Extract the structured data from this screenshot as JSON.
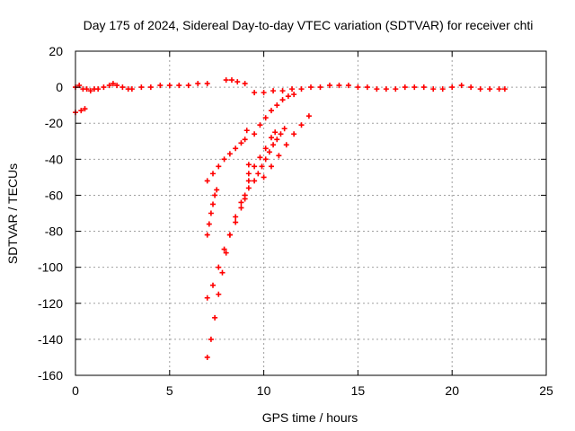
{
  "chart_data": {
    "type": "scatter",
    "title": "Day 175 of 2024, Sidereal Day-to-day VTEC variation (SDTVAR) for receiver chti",
    "xlabel": "GPS time / hours",
    "ylabel": "SDTVAR / TECUs",
    "xlim": [
      0,
      25
    ],
    "ylim": [
      -160,
      20
    ],
    "xticks": [
      0,
      5,
      10,
      15,
      20,
      25
    ],
    "yticks": [
      -160,
      -140,
      -120,
      -100,
      -80,
      -60,
      -40,
      -20,
      0,
      20
    ],
    "grid": true,
    "marker": "plus",
    "color": "#ff0000",
    "series": [
      {
        "points_xy": [
          [
            0.0,
            -14
          ],
          [
            0.3,
            -13
          ],
          [
            0.5,
            -12
          ],
          [
            0.0,
            0
          ],
          [
            0.2,
            1
          ],
          [
            0.4,
            -1
          ],
          [
            0.6,
            -1
          ],
          [
            0.8,
            -2
          ],
          [
            1.0,
            -1
          ],
          [
            1.2,
            -1
          ],
          [
            1.5,
            0
          ],
          [
            1.8,
            1
          ],
          [
            2.0,
            2
          ],
          [
            2.2,
            1
          ],
          [
            2.5,
            0
          ],
          [
            2.8,
            -1
          ],
          [
            3.0,
            -1
          ],
          [
            3.5,
            0
          ],
          [
            4.0,
            0
          ],
          [
            4.5,
            1
          ],
          [
            5.0,
            1
          ],
          [
            5.5,
            1
          ],
          [
            6.0,
            1
          ],
          [
            6.5,
            2
          ],
          [
            7.0,
            2
          ],
          [
            8.0,
            4
          ],
          [
            8.3,
            4
          ],
          [
            8.6,
            3
          ],
          [
            9.0,
            2
          ],
          [
            9.5,
            -3
          ],
          [
            10.0,
            -3
          ],
          [
            10.5,
            -2
          ],
          [
            11.0,
            -2
          ],
          [
            11.5,
            -1
          ],
          [
            12.0,
            -1
          ],
          [
            12.5,
            0
          ],
          [
            13.0,
            0
          ],
          [
            13.5,
            1
          ],
          [
            14.0,
            1
          ],
          [
            14.5,
            1
          ],
          [
            15.0,
            0
          ],
          [
            15.5,
            0
          ],
          [
            16.0,
            -1
          ],
          [
            16.5,
            -1
          ],
          [
            17.0,
            -1
          ],
          [
            17.5,
            0
          ],
          [
            18.0,
            0
          ],
          [
            18.5,
            0
          ],
          [
            19.0,
            -1
          ],
          [
            19.5,
            -1
          ],
          [
            20.0,
            0
          ],
          [
            20.5,
            1
          ],
          [
            21.0,
            0
          ],
          [
            21.5,
            -1
          ],
          [
            22.0,
            -1
          ],
          [
            22.5,
            -1
          ],
          [
            22.8,
            -1
          ],
          [
            7.0,
            -52
          ],
          [
            7.3,
            -48
          ],
          [
            7.6,
            -44
          ],
          [
            7.9,
            -40
          ],
          [
            8.2,
            -37
          ],
          [
            8.5,
            -34
          ],
          [
            8.8,
            -31
          ],
          [
            9.0,
            -29
          ],
          [
            7.0,
            -82
          ],
          [
            7.1,
            -76
          ],
          [
            7.2,
            -70
          ],
          [
            7.3,
            -65
          ],
          [
            7.4,
            -60
          ],
          [
            7.5,
            -57
          ],
          [
            7.0,
            -117
          ],
          [
            7.3,
            -110
          ],
          [
            7.6,
            -100
          ],
          [
            7.9,
            -90
          ],
          [
            8.2,
            -82
          ],
          [
            8.5,
            -75
          ],
          [
            8.8,
            -67
          ],
          [
            9.0,
            -62
          ],
          [
            7.0,
            -150
          ],
          [
            7.2,
            -140
          ],
          [
            7.4,
            -128
          ],
          [
            7.6,
            -115
          ],
          [
            7.8,
            -103
          ],
          [
            8.0,
            -92
          ],
          [
            8.2,
            -82
          ],
          [
            8.5,
            -72
          ],
          [
            8.8,
            -64
          ],
          [
            9.0,
            -60
          ],
          [
            9.2,
            -43
          ],
          [
            9.2,
            -48
          ],
          [
            9.2,
            -52
          ],
          [
            9.2,
            -56
          ],
          [
            9.1,
            -24
          ],
          [
            9.5,
            -26
          ],
          [
            9.8,
            -21
          ],
          [
            10.1,
            -17
          ],
          [
            10.4,
            -13
          ],
          [
            10.7,
            -10
          ],
          [
            11.0,
            -7
          ],
          [
            11.3,
            -5
          ],
          [
            11.6,
            -4
          ],
          [
            9.5,
            -52
          ],
          [
            9.7,
            -48
          ],
          [
            9.9,
            -44
          ],
          [
            10.1,
            -40
          ],
          [
            10.3,
            -36
          ],
          [
            10.5,
            -32
          ],
          [
            10.7,
            -29
          ],
          [
            10.9,
            -26
          ],
          [
            11.1,
            -23
          ],
          [
            9.5,
            -44
          ],
          [
            9.8,
            -39
          ],
          [
            10.1,
            -34
          ],
          [
            10.4,
            -28
          ],
          [
            10.6,
            -25
          ],
          [
            10.0,
            -50
          ],
          [
            10.4,
            -44
          ],
          [
            10.8,
            -38
          ],
          [
            11.2,
            -32
          ],
          [
            11.6,
            -26
          ],
          [
            12.0,
            -21
          ],
          [
            12.4,
            -16
          ]
        ]
      }
    ]
  }
}
